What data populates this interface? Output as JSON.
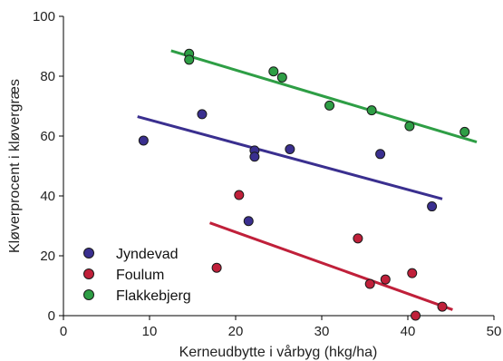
{
  "chart_data": {
    "type": "scatter",
    "title": "",
    "xlabel": "Kerneudbytte i vårbyg (hkg/ha)",
    "ylabel": "Kløverprocent i kløvergræs",
    "xlim": [
      0,
      50
    ],
    "ylim": [
      0,
      100
    ],
    "x_ticks": [
      "0",
      "10",
      "20",
      "30",
      "40",
      "50"
    ],
    "y_ticks": [
      "0",
      "20",
      "40",
      "60",
      "80",
      "100"
    ],
    "grid": false,
    "legend_position": "bottom-left",
    "series": [
      {
        "name": "Jyndevad",
        "color": "#3a2f8f",
        "points": [
          [
            9.3,
            58.5
          ],
          [
            16.1,
            67.3
          ],
          [
            21.5,
            31.6
          ],
          [
            22.2,
            55.2
          ],
          [
            22.2,
            53.1
          ],
          [
            26.3,
            55.6
          ],
          [
            36.8,
            54.0
          ],
          [
            42.8,
            36.5
          ]
        ],
        "trendline": [
          [
            8.6,
            66.5
          ],
          [
            44.0,
            39.0
          ]
        ]
      },
      {
        "name": "Foulum",
        "color": "#c0203a",
        "points": [
          [
            17.8,
            16.0
          ],
          [
            20.4,
            40.3
          ],
          [
            34.2,
            25.8
          ],
          [
            35.6,
            10.6
          ],
          [
            37.4,
            12.1
          ],
          [
            40.5,
            14.2
          ],
          [
            40.9,
            0.0
          ],
          [
            44.0,
            3.0
          ]
        ],
        "trendline": [
          [
            17.0,
            31.0
          ],
          [
            45.2,
            2.0
          ]
        ]
      },
      {
        "name": "Flakkebjerg",
        "color": "#2e9e45",
        "points": [
          [
            14.6,
            87.5
          ],
          [
            14.6,
            85.5
          ],
          [
            24.4,
            81.6
          ],
          [
            25.4,
            79.6
          ],
          [
            30.9,
            70.2
          ],
          [
            35.8,
            68.6
          ],
          [
            40.2,
            63.3
          ],
          [
            46.6,
            61.4
          ]
        ],
        "trendline": [
          [
            12.5,
            88.5
          ],
          [
            48.0,
            58.0
          ]
        ]
      }
    ]
  }
}
